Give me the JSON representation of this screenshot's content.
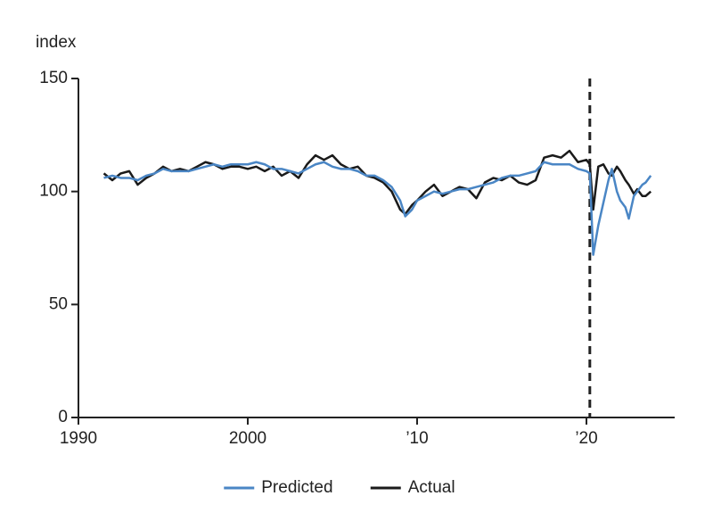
{
  "chart_data": {
    "type": "line",
    "y_label": "index",
    "x": [
      1991.5,
      1992,
      1992.5,
      1993,
      1993.5,
      1994,
      1994.5,
      1995,
      1995.5,
      1996,
      1996.5,
      1997,
      1997.5,
      1998,
      1998.5,
      1999,
      1999.5,
      2000,
      2000.5,
      2001,
      2001.5,
      2002,
      2002.5,
      2003,
      2003.5,
      2004,
      2004.5,
      2005,
      2005.5,
      2006,
      2006.5,
      2007,
      2007.5,
      2008,
      2008.5,
      2009,
      2009.3,
      2009.7,
      2010,
      2010.5,
      2011,
      2011.5,
      2012,
      2012.5,
      2013,
      2013.5,
      2014,
      2014.5,
      2015,
      2015.5,
      2016,
      2016.5,
      2017,
      2017.5,
      2018,
      2018.5,
      2019,
      2019.5,
      2020,
      2020.2,
      2020.4,
      2020.7,
      2021,
      2021.3,
      2021.5,
      2021.8,
      2022,
      2022.3,
      2022.5,
      2022.8,
      2023,
      2023.3,
      2023.5,
      2023.8
    ],
    "series": [
      {
        "name": "Predicted",
        "color": "#4a86c5",
        "values": [
          106,
          107,
          106,
          106,
          105,
          107,
          108,
          110,
          109,
          109,
          109,
          110,
          111,
          112,
          111,
          112,
          112,
          112,
          113,
          112,
          110,
          110,
          109,
          108,
          110,
          112,
          113,
          111,
          110,
          110,
          109,
          107,
          107,
          105,
          102,
          96,
          89,
          92,
          96,
          98,
          100,
          99,
          100,
          101,
          101,
          102,
          103,
          104,
          106,
          107,
          107,
          108,
          109,
          113,
          112,
          112,
          112,
          110,
          109,
          108,
          72,
          85,
          95,
          105,
          110,
          100,
          96,
          93,
          88,
          98,
          100,
          103,
          104,
          107
        ]
      },
      {
        "name": "Actual",
        "color": "#1a1a1a",
        "values": [
          108,
          105,
          108,
          109,
          103,
          106,
          108,
          111,
          109,
          110,
          109,
          111,
          113,
          112,
          110,
          111,
          111,
          110,
          111,
          109,
          111,
          107,
          109,
          106,
          112,
          116,
          114,
          116,
          112,
          110,
          111,
          107,
          106,
          104,
          100,
          92,
          90,
          94,
          96,
          100,
          103,
          98,
          100,
          102,
          101,
          97,
          104,
          106,
          105,
          107,
          104,
          103,
          105,
          115,
          116,
          115,
          118,
          113,
          114,
          112,
          92,
          111,
          112,
          108,
          107,
          111,
          109,
          105,
          103,
          99,
          101,
          98,
          98,
          100
        ]
      }
    ],
    "xlim": [
      1990,
      2025
    ],
    "ylim": [
      0,
      150
    ],
    "xticks": [
      1990,
      2000,
      {
        "value": 2010,
        "label": "’10"
      },
      {
        "value": 2020,
        "label": "’20"
      }
    ],
    "yticks": [
      0,
      50,
      100,
      150
    ],
    "vline": 2020.2,
    "legend": "bottom"
  }
}
